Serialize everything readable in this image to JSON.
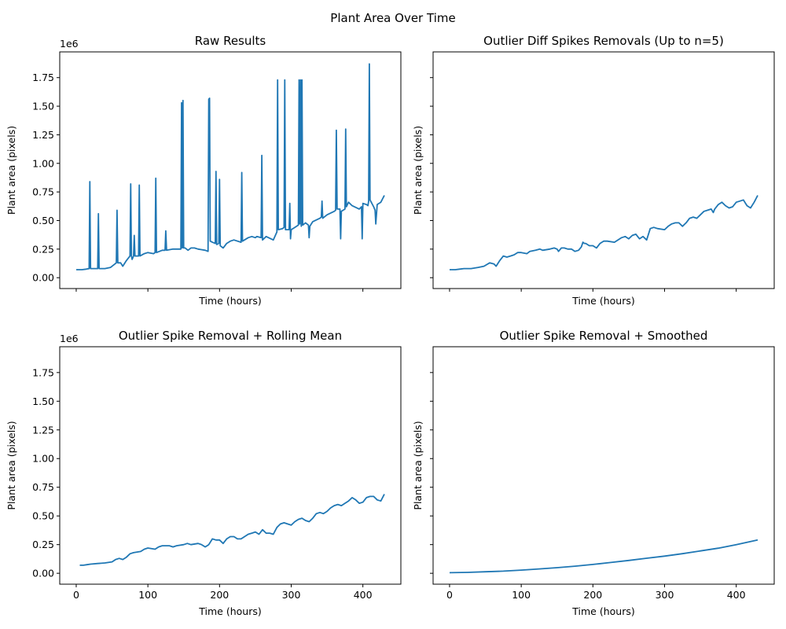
{
  "figure": {
    "suptitle": "Plant Area Over Time"
  },
  "colors": {
    "line": "#1f77b4"
  },
  "chart_data": [
    {
      "type": "line",
      "title": "Raw Results",
      "xlabel": "Time (hours)",
      "ylabel": "Plant area (pixels)",
      "y_offset_label": "1e6",
      "xlim": [
        -23,
        453
      ],
      "ylim": [
        -0.095,
        1.975
      ],
      "xticks": [
        0,
        100,
        200,
        300,
        400
      ],
      "xtick_labels": [
        "",
        "",
        "",
        "",
        ""
      ],
      "yticks": [
        0,
        0.25,
        0.5,
        0.75,
        1.0,
        1.25,
        1.5,
        1.75
      ],
      "ytick_labels": [
        "0.00",
        "0.25",
        "0.50",
        "0.75",
        "1.00",
        "1.25",
        "1.50",
        "1.75"
      ],
      "series": [
        {
          "x": [
            0,
            8,
            14,
            18,
            19,
            20,
            21,
            25,
            30,
            31,
            32,
            40,
            48,
            56,
            57,
            58,
            62,
            65,
            70,
            75,
            76,
            77,
            78,
            80,
            81,
            82,
            87,
            88,
            89,
            95,
            100,
            108,
            110,
            111,
            112,
            120,
            124,
            125,
            126,
            135,
            146,
            147,
            148,
            149,
            150,
            152,
            156,
            160,
            165,
            170,
            180,
            184,
            185,
            186,
            187,
            190,
            194,
            195,
            196,
            199,
            200,
            201,
            205,
            210,
            215,
            220,
            230,
            231,
            232,
            240,
            245,
            250,
            252,
            258,
            259,
            260,
            265,
            275,
            280,
            281,
            282,
            288,
            290,
            291,
            292,
            297,
            298,
            299,
            300,
            305,
            310,
            311,
            312,
            313,
            314,
            315,
            316,
            320,
            324,
            325,
            326,
            330,
            340,
            342,
            343,
            344,
            350,
            360,
            362,
            363,
            364,
            368,
            369,
            370,
            375,
            376,
            377,
            380,
            385,
            395,
            398,
            399,
            400,
            405,
            407,
            408,
            409,
            410,
            415,
            417,
            418,
            420,
            425,
            430
          ],
          "y": [
            0.07,
            0.07,
            0.075,
            0.08,
            0.84,
            0.08,
            0.08,
            0.08,
            0.08,
            0.56,
            0.08,
            0.08,
            0.09,
            0.13,
            0.59,
            0.13,
            0.13,
            0.1,
            0.15,
            0.19,
            0.82,
            0.19,
            0.16,
            0.19,
            0.37,
            0.19,
            0.19,
            0.81,
            0.19,
            0.21,
            0.22,
            0.21,
            0.22,
            0.87,
            0.22,
            0.24,
            0.24,
            0.41,
            0.24,
            0.25,
            0.25,
            1.53,
            0.26,
            1.55,
            0.26,
            0.26,
            0.24,
            0.26,
            0.26,
            0.25,
            0.24,
            0.23,
            1.56,
            1.57,
            0.32,
            0.31,
            0.3,
            0.93,
            0.29,
            0.3,
            0.86,
            0.28,
            0.26,
            0.3,
            0.32,
            0.33,
            0.31,
            0.92,
            0.32,
            0.35,
            0.36,
            0.35,
            0.36,
            0.35,
            1.07,
            0.33,
            0.36,
            0.33,
            0.4,
            1.73,
            0.42,
            0.43,
            0.44,
            1.73,
            0.42,
            0.42,
            0.65,
            0.34,
            0.42,
            0.44,
            0.46,
            1.73,
            0.47,
            1.73,
            0.45,
            1.73,
            0.46,
            0.48,
            0.46,
            0.35,
            0.45,
            0.49,
            0.52,
            0.53,
            0.67,
            0.52,
            0.55,
            0.58,
            0.59,
            1.29,
            0.6,
            0.6,
            0.34,
            0.58,
            0.6,
            1.3,
            0.62,
            0.66,
            0.63,
            0.6,
            0.62,
            0.34,
            0.65,
            0.64,
            0.63,
            0.67,
            1.87,
            0.68,
            0.62,
            0.59,
            0.47,
            0.64,
            0.66,
            0.72
          ]
        }
      ]
    },
    {
      "type": "line",
      "title": "Outlier Diff Spikes Removals (Up to n=5)",
      "xlabel": "Time (hours)",
      "ylabel": "Plant area (pixels)",
      "y_offset_label": "",
      "xlim": [
        -23,
        453
      ],
      "ylim": [
        -0.095,
        1.975
      ],
      "xticks": [
        0,
        100,
        200,
        300,
        400
      ],
      "xtick_labels": [
        "",
        "",
        "",
        "",
        ""
      ],
      "yticks": [
        0,
        0.25,
        0.5,
        0.75,
        1.0,
        1.25,
        1.5,
        1.75
      ],
      "ytick_labels": [
        "",
        "",
        "",
        "",
        "",
        "",
        "",
        ""
      ],
      "series": [
        {
          "x": [
            0,
            8,
            14,
            20,
            30,
            40,
            48,
            56,
            62,
            65,
            70,
            75,
            80,
            85,
            90,
            95,
            100,
            108,
            112,
            120,
            126,
            130,
            140,
            146,
            150,
            152,
            156,
            160,
            165,
            170,
            175,
            180,
            184,
            186,
            188,
            190,
            195,
            200,
            205,
            210,
            215,
            220,
            230,
            240,
            245,
            250,
            255,
            260,
            265,
            270,
            275,
            280,
            285,
            290,
            300,
            305,
            310,
            315,
            320,
            325,
            330,
            335,
            340,
            345,
            350,
            355,
            360,
            365,
            368,
            370,
            375,
            380,
            385,
            390,
            395,
            400,
            405,
            410,
            415,
            420,
            425,
            430
          ],
          "y": [
            0.07,
            0.07,
            0.075,
            0.08,
            0.08,
            0.09,
            0.1,
            0.13,
            0.12,
            0.1,
            0.15,
            0.19,
            0.18,
            0.19,
            0.2,
            0.22,
            0.22,
            0.21,
            0.23,
            0.24,
            0.25,
            0.24,
            0.25,
            0.26,
            0.25,
            0.23,
            0.26,
            0.26,
            0.25,
            0.25,
            0.23,
            0.24,
            0.27,
            0.31,
            0.3,
            0.3,
            0.28,
            0.28,
            0.26,
            0.3,
            0.32,
            0.32,
            0.31,
            0.35,
            0.36,
            0.34,
            0.37,
            0.38,
            0.34,
            0.36,
            0.33,
            0.43,
            0.44,
            0.43,
            0.42,
            0.45,
            0.47,
            0.48,
            0.48,
            0.45,
            0.48,
            0.52,
            0.53,
            0.52,
            0.55,
            0.58,
            0.59,
            0.6,
            0.57,
            0.6,
            0.64,
            0.66,
            0.63,
            0.61,
            0.62,
            0.66,
            0.67,
            0.68,
            0.63,
            0.61,
            0.66,
            0.72
          ]
        }
      ]
    },
    {
      "type": "line",
      "title": "Outlier Spike Removal + Rolling Mean",
      "xlabel": "Time (hours)",
      "ylabel": "Plant area (pixels)",
      "y_offset_label": "1e6",
      "xlim": [
        -23,
        453
      ],
      "ylim": [
        -0.095,
        1.975
      ],
      "xticks": [
        0,
        100,
        200,
        300,
        400
      ],
      "xtick_labels": [
        "0",
        "100",
        "200",
        "300",
        "400"
      ],
      "yticks": [
        0,
        0.25,
        0.5,
        0.75,
        1.0,
        1.25,
        1.5,
        1.75
      ],
      "ytick_labels": [
        "0.00",
        "0.25",
        "0.50",
        "0.75",
        "1.00",
        "1.25",
        "1.50",
        "1.75"
      ],
      "series": [
        {
          "x": [
            5,
            10,
            15,
            20,
            30,
            40,
            50,
            55,
            60,
            65,
            70,
            75,
            80,
            90,
            95,
            100,
            110,
            115,
            120,
            130,
            135,
            140,
            150,
            155,
            160,
            170,
            175,
            180,
            185,
            190,
            195,
            200,
            205,
            210,
            215,
            220,
            225,
            230,
            240,
            245,
            250,
            255,
            260,
            265,
            270,
            275,
            280,
            285,
            290,
            300,
            305,
            310,
            315,
            320,
            325,
            330,
            335,
            340,
            345,
            350,
            355,
            360,
            365,
            370,
            375,
            380,
            385,
            390,
            395,
            400,
            405,
            410,
            415,
            420,
            425,
            430
          ],
          "y": [
            0.07,
            0.07,
            0.075,
            0.08,
            0.085,
            0.09,
            0.1,
            0.12,
            0.13,
            0.12,
            0.14,
            0.17,
            0.18,
            0.19,
            0.21,
            0.22,
            0.21,
            0.23,
            0.24,
            0.24,
            0.23,
            0.24,
            0.25,
            0.26,
            0.25,
            0.26,
            0.25,
            0.23,
            0.25,
            0.3,
            0.29,
            0.29,
            0.26,
            0.3,
            0.32,
            0.32,
            0.3,
            0.3,
            0.34,
            0.35,
            0.36,
            0.34,
            0.38,
            0.35,
            0.35,
            0.34,
            0.4,
            0.43,
            0.44,
            0.42,
            0.45,
            0.47,
            0.48,
            0.46,
            0.45,
            0.48,
            0.52,
            0.53,
            0.52,
            0.54,
            0.57,
            0.59,
            0.6,
            0.59,
            0.61,
            0.63,
            0.66,
            0.64,
            0.61,
            0.62,
            0.66,
            0.67,
            0.67,
            0.64,
            0.63,
            0.69
          ]
        }
      ]
    },
    {
      "type": "line",
      "title": "Outlier Spike Removal + Smoothed",
      "xlabel": "Time (hours)",
      "ylabel": "Plant area (pixels)",
      "y_offset_label": "",
      "xlim": [
        -23,
        453
      ],
      "ylim": [
        -0.095,
        1.975
      ],
      "xticks": [
        0,
        100,
        200,
        300,
        400
      ],
      "xtick_labels": [
        "0",
        "100",
        "200",
        "300",
        "400"
      ],
      "yticks": [
        0,
        0.25,
        0.5,
        0.75,
        1.0,
        1.25,
        1.5,
        1.75
      ],
      "ytick_labels": [
        "",
        "",
        "",
        "",
        "",
        "",
        "",
        ""
      ],
      "series": [
        {
          "x": [
            0,
            25,
            50,
            75,
            100,
            125,
            150,
            175,
            200,
            225,
            250,
            275,
            300,
            325,
            350,
            375,
            400,
            430
          ],
          "y": [
            0.005,
            0.008,
            0.013,
            0.019,
            0.028,
            0.038,
            0.049,
            0.062,
            0.077,
            0.094,
            0.112,
            0.131,
            0.15,
            0.171,
            0.195,
            0.219,
            0.25,
            0.29
          ]
        }
      ]
    }
  ]
}
